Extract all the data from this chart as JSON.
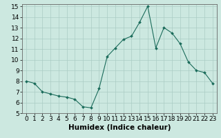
{
  "x": [
    0,
    1,
    2,
    3,
    4,
    5,
    6,
    7,
    8,
    9,
    10,
    11,
    12,
    13,
    14,
    15,
    16,
    17,
    18,
    19,
    20,
    21,
    22,
    23
  ],
  "y": [
    8.0,
    7.8,
    7.0,
    6.8,
    6.6,
    6.5,
    6.3,
    5.6,
    5.5,
    7.3,
    10.3,
    11.1,
    11.9,
    12.2,
    13.5,
    15.0,
    11.1,
    13.0,
    12.5,
    11.5,
    9.8,
    9.0,
    8.8,
    7.8
  ],
  "line_color": "#1a6b5a",
  "marker": "D",
  "marker_size": 2.0,
  "bg_color": "#cce8e0",
  "grid_color": "#aaccc4",
  "axis_color": "#666666",
  "xlabel": "Humidex (Indice chaleur)",
  "xlabel_fontsize": 7.5,
  "tick_fontsize": 6.5,
  "xlim": [
    -0.5,
    23.5
  ],
  "ylim": [
    5,
    15.2
  ],
  "yticks": [
    5,
    6,
    7,
    8,
    9,
    10,
    11,
    12,
    13,
    14,
    15
  ],
  "xticks": [
    0,
    1,
    2,
    3,
    4,
    5,
    6,
    7,
    8,
    9,
    10,
    11,
    12,
    13,
    14,
    15,
    16,
    17,
    18,
    19,
    20,
    21,
    22,
    23
  ]
}
